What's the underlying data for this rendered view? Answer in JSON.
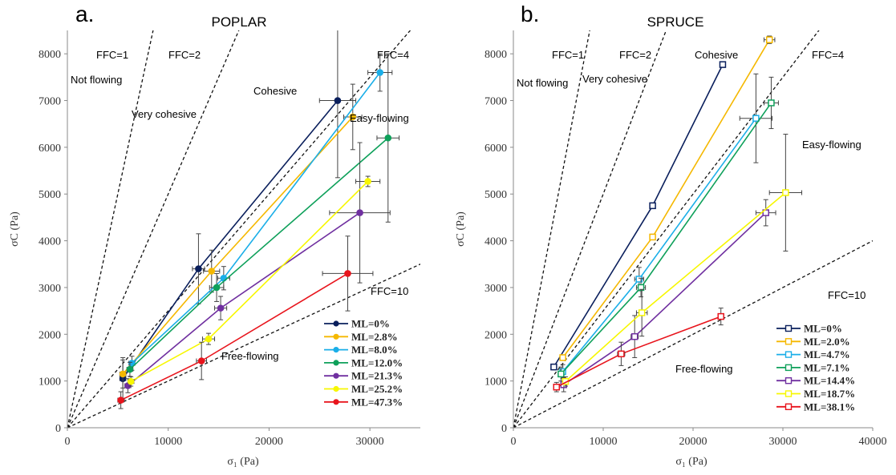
{
  "chart_data": [
    {
      "type": "line",
      "panel_label": "a.",
      "title": "POPLAR",
      "xlabel": "σ₁ (Pa)",
      "ylabel": "σC (Pa)",
      "xlim": [
        0,
        35000
      ],
      "ylim": [
        0,
        8500
      ],
      "xticks": [
        "0",
        "10000",
        "20000",
        "30000"
      ],
      "xtick_values": [
        0,
        10000,
        20000,
        30000
      ],
      "yticks": [
        "0",
        "1000",
        "2000",
        "3000",
        "4000",
        "5000",
        "6000",
        "7000",
        "8000"
      ],
      "ytick_values": [
        0,
        1000,
        2000,
        3000,
        4000,
        5000,
        6000,
        7000,
        8000
      ],
      "marker": "filled-circle",
      "grid": false,
      "legend_position": "bottom-right",
      "ffc_lines": [
        {
          "label": "FFC=1",
          "ffc": 1
        },
        {
          "label": "FFC=2",
          "ffc": 2
        },
        {
          "label": "FFC=4",
          "ffc": 4
        },
        {
          "label": "FFC=10",
          "ffc": 10
        }
      ],
      "regions": [
        "Not flowing",
        "Very cohesive",
        "Cohesive",
        "Easy-flowing",
        "Free-flowing"
      ],
      "series": [
        {
          "name": "ML=0%",
          "color": "#0a1f5c",
          "x": [
            5500,
            13000,
            26800
          ],
          "y": [
            1050,
            3400,
            7000
          ],
          "yerr": [
            450,
            750,
            1650
          ],
          "xerr": [
            300,
            600,
            1800
          ]
        },
        {
          "name": "ML=2.8%",
          "color": "#f5b800",
          "x": [
            5500,
            14300,
            28300
          ],
          "y": [
            1150,
            3350,
            6650
          ],
          "yerr": [
            300,
            450,
            700
          ],
          "xerr": [
            300,
            800,
            900
          ]
        },
        {
          "name": "ML=8.0%",
          "color": "#1aaee8",
          "x": [
            6400,
            15500,
            31000
          ],
          "y": [
            1380,
            3200,
            7600
          ],
          "yerr": [
            150,
            250,
            400
          ],
          "xerr": [
            300,
            600,
            1200
          ]
        },
        {
          "name": "ML=12.0%",
          "color": "#0ea05a",
          "x": [
            6200,
            14800,
            31800
          ],
          "y": [
            1250,
            3000,
            6200
          ],
          "yerr": [
            150,
            300,
            1800
          ],
          "xerr": [
            300,
            700,
            1100
          ]
        },
        {
          "name": "ML=21.3%",
          "color": "#7030a0",
          "x": [
            6000,
            15200,
            29000
          ],
          "y": [
            900,
            2560,
            4600
          ],
          "yerr": [
            150,
            250,
            1500
          ],
          "xerr": [
            300,
            600,
            3000
          ]
        },
        {
          "name": "ML=25.2%",
          "color": "#f7f700",
          "x": [
            6300,
            14000,
            29800
          ],
          "y": [
            990,
            1900,
            5270
          ],
          "yerr": [
            100,
            120,
            110
          ],
          "xerr": [
            300,
            600,
            1200
          ]
        },
        {
          "name": "ML=47.3%",
          "color": "#e8141c",
          "x": [
            5300,
            13300,
            27800
          ],
          "y": [
            590,
            1430,
            3300
          ],
          "yerr": [
            180,
            400,
            800
          ],
          "xerr": [
            300,
            500,
            2500
          ]
        }
      ]
    },
    {
      "type": "line",
      "panel_label": "b.",
      "title": "SPRUCE",
      "xlabel": "σ₁ (Pa)",
      "ylabel": "σC (Pa)",
      "xlim": [
        0,
        40000
      ],
      "ylim": [
        0,
        8500
      ],
      "xticks": [
        "0",
        "10000",
        "20000",
        "30000",
        "40000"
      ],
      "xtick_values": [
        0,
        10000,
        20000,
        30000,
        40000
      ],
      "yticks": [
        "0",
        "1000",
        "2000",
        "3000",
        "4000",
        "5000",
        "6000",
        "7000",
        "8000"
      ],
      "ytick_values": [
        0,
        1000,
        2000,
        3000,
        4000,
        5000,
        6000,
        7000,
        8000
      ],
      "marker": "open-square",
      "grid": false,
      "legend_position": "bottom-right",
      "ffc_lines": [
        {
          "label": "FFC=1",
          "ffc": 1
        },
        {
          "label": "FFC=2",
          "ffc": 2
        },
        {
          "label": "FFC=4",
          "ffc": 4
        },
        {
          "label": "FFC=10",
          "ffc": 10
        }
      ],
      "regions": [
        "Not flowing",
        "Very cohesive",
        "Cohesive",
        "Easy-flowing",
        "Free-flowing"
      ],
      "series": [
        {
          "name": "ML=0%",
          "color": "#0a1f5c",
          "x": [
            4500,
            15500,
            23300
          ],
          "y": [
            1300,
            4750,
            7770
          ],
          "yerr": [
            60,
            60,
            60
          ],
          "xerr": [
            300,
            300,
            300
          ]
        },
        {
          "name": "ML=2.0%",
          "color": "#f5b800",
          "x": [
            5500,
            15500,
            28500
          ],
          "y": [
            1500,
            4080,
            8300
          ],
          "yerr": [
            60,
            60,
            80
          ],
          "xerr": [
            300,
            300,
            600
          ]
        },
        {
          "name": "ML=4.7%",
          "color": "#1aaee8",
          "x": [
            5500,
            14000,
            27000
          ],
          "y": [
            1200,
            3180,
            6620
          ],
          "yerr": [
            150,
            250,
            950
          ],
          "xerr": [
            300,
            500,
            1800
          ]
        },
        {
          "name": "ML=7.1%",
          "color": "#0ea05a",
          "x": [
            5300,
            14200,
            28700
          ],
          "y": [
            1150,
            3000,
            6950
          ],
          "yerr": [
            150,
            200,
            550
          ],
          "xerr": [
            300,
            500,
            800
          ]
        },
        {
          "name": "ML=14.4%",
          "color": "#7030a0",
          "x": [
            5600,
            13500,
            28100
          ],
          "y": [
            920,
            1950,
            4600
          ],
          "yerr": [
            150,
            450,
            280
          ],
          "xerr": [
            300,
            400,
            1100
          ]
        },
        {
          "name": "ML=18.7%",
          "color": "#f7f700",
          "x": [
            5800,
            14300,
            30300
          ],
          "y": [
            990,
            2460,
            5030
          ],
          "yerr": [
            100,
            500,
            1250
          ],
          "xerr": [
            300,
            600,
            1800
          ]
        },
        {
          "name": "ML=38.1%",
          "color": "#e8141c",
          "x": [
            4800,
            12000,
            23100
          ],
          "y": [
            870,
            1580,
            2380
          ],
          "yerr": [
            100,
            250,
            180
          ],
          "xerr": [
            300,
            400,
            300
          ]
        }
      ]
    }
  ]
}
